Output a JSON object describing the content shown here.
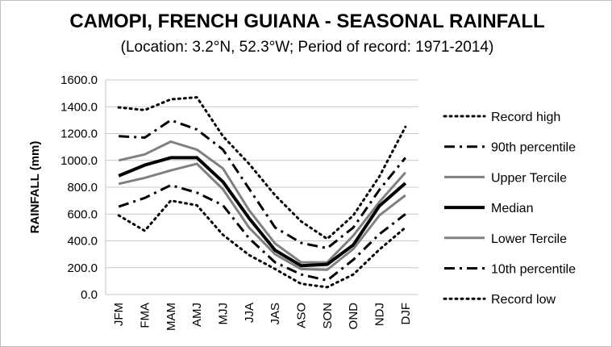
{
  "chart_data": {
    "type": "line",
    "title": "CAMOPI, FRENCH GUIANA - SEASONAL RAINFALL",
    "subtitle": "(Location: 3.2°N, 52.3°W; Period of record: 1971-2014)",
    "xlabel": "",
    "ylabel": "RAINFALL (mm)",
    "ylim": [
      0,
      1600
    ],
    "yticks": [
      "0.0",
      "200.0",
      "400.0",
      "600.0",
      "800.0",
      "1000.0",
      "1200.0",
      "1400.0",
      "1600.0"
    ],
    "categories": [
      "JFM",
      "FMA",
      "MAM",
      "AMJ",
      "MJJ",
      "JJA",
      "JAS",
      "ASO",
      "SON",
      "OND",
      "NDJ",
      "DJF"
    ],
    "grid": true,
    "legend_position": "right",
    "series": [
      {
        "name": "Record high",
        "color": "#000000",
        "style": "dotted",
        "width": 3,
        "values": [
          1395,
          1375,
          1455,
          1470,
          1180,
          975,
          740,
          545,
          415,
          590,
          880,
          1250
        ]
      },
      {
        "name": "90th percentile",
        "color": "#000000",
        "style": "dashdot",
        "width": 3,
        "values": [
          1180,
          1170,
          1300,
          1230,
          1080,
          790,
          500,
          385,
          345,
          500,
          780,
          1020
        ]
      },
      {
        "name": "Upper Tercile",
        "color": "#808080",
        "style": "solid",
        "width": 3,
        "values": [
          1000,
          1045,
          1140,
          1080,
          940,
          630,
          380,
          240,
          240,
          440,
          690,
          910
        ]
      },
      {
        "name": "Median",
        "color": "#000000",
        "style": "solid",
        "width": 4,
        "values": [
          885,
          965,
          1020,
          1020,
          840,
          570,
          330,
          215,
          225,
          370,
          660,
          830
        ]
      },
      {
        "name": "Lower Tercile",
        "color": "#808080",
        "style": "solid",
        "width": 3,
        "values": [
          825,
          870,
          925,
          975,
          785,
          500,
          300,
          190,
          185,
          340,
          590,
          740
        ]
      },
      {
        "name": "10th percentile",
        "color": "#000000",
        "style": "dashdot",
        "width": 3,
        "values": [
          655,
          720,
          815,
          760,
          665,
          420,
          240,
          150,
          105,
          260,
          450,
          600
        ]
      },
      {
        "name": "Record low",
        "color": "#000000",
        "style": "dotted",
        "width": 3,
        "values": [
          590,
          475,
          700,
          665,
          445,
          295,
          190,
          80,
          55,
          150,
          335,
          500
        ]
      }
    ]
  }
}
